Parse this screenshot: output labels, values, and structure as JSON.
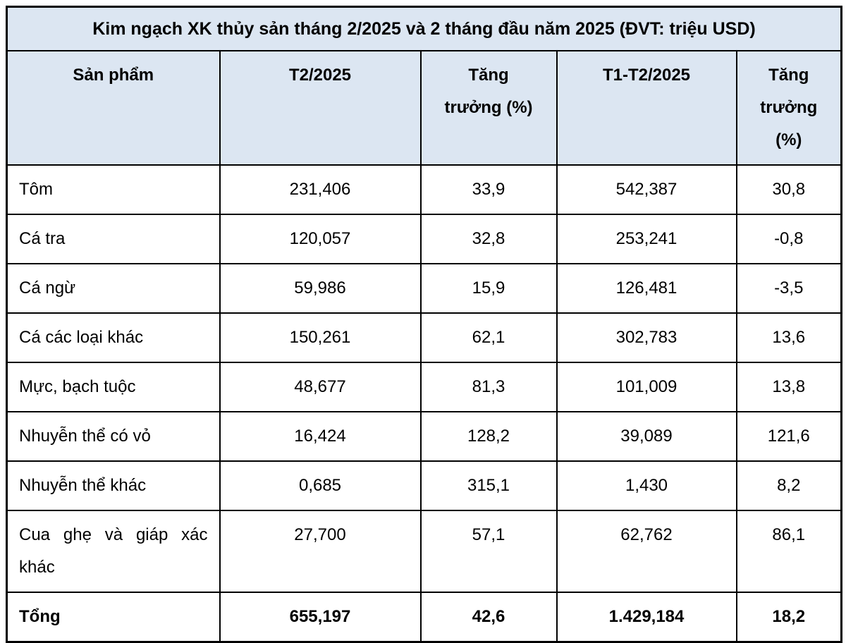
{
  "chart_data": {
    "type": "table",
    "title": "Kim ngạch XK thủy sản tháng 2/2025 và 2 tháng đầu năm 2025 (ĐVT: triệu USD)",
    "unit": "triệu USD",
    "columns": [
      {
        "label": "Sản phẩm",
        "lines": [
          "Sản phẩm"
        ]
      },
      {
        "label": "T2/2025",
        "lines": [
          "T2/2025"
        ]
      },
      {
        "label": "Tăng trưởng (%)",
        "lines": [
          "Tăng",
          "trưởng (%)"
        ]
      },
      {
        "label": "T1-T2/2025",
        "lines": [
          "T1-T2/2025"
        ]
      },
      {
        "label": "Tăng trưởng (%)",
        "lines": [
          "Tăng",
          "trưởng",
          "(%)"
        ]
      }
    ],
    "rows": [
      {
        "name": "Tôm",
        "t2": "231,406",
        "g1": "33,9",
        "t12": "542,387",
        "g2": "30,8"
      },
      {
        "name": "Cá tra",
        "t2": "120,057",
        "g1": "32,8",
        "t12": "253,241",
        "g2": "-0,8"
      },
      {
        "name": "Cá ngừ",
        "t2": "59,986",
        "g1": "15,9",
        "t12": "126,481",
        "g2": "-3,5"
      },
      {
        "name": "Cá các loại khác",
        "t2": "150,261",
        "g1": "62,1",
        "t12": "302,783",
        "g2": "13,6"
      },
      {
        "name": "Mực, bạch tuộc",
        "t2": "48,677",
        "g1": "81,3",
        "t12": "101,009",
        "g2": "13,8"
      },
      {
        "name": "Nhuyễn thể có vỏ",
        "t2": "16,424",
        "g1": "128,2",
        "t12": "39,089",
        "g2": "121,6"
      },
      {
        "name": "Nhuyễn thể khác",
        "t2": "0,685",
        "g1": "315,1",
        "t12": "1,430",
        "g2": "8,2"
      },
      {
        "name": "Cua ghẹ và giáp xác khác",
        "t2": "27,700",
        "g1": "57,1",
        "t12": "62,762",
        "g2": "86,1"
      }
    ],
    "total": {
      "name": "Tổng",
      "t2": "655,197",
      "g1": "42,6",
      "t12": "1.429,184",
      "g2": "18,2"
    }
  },
  "colors": {
    "header_bg": "#dce6f2",
    "border": "#000000",
    "text": "#000000"
  }
}
